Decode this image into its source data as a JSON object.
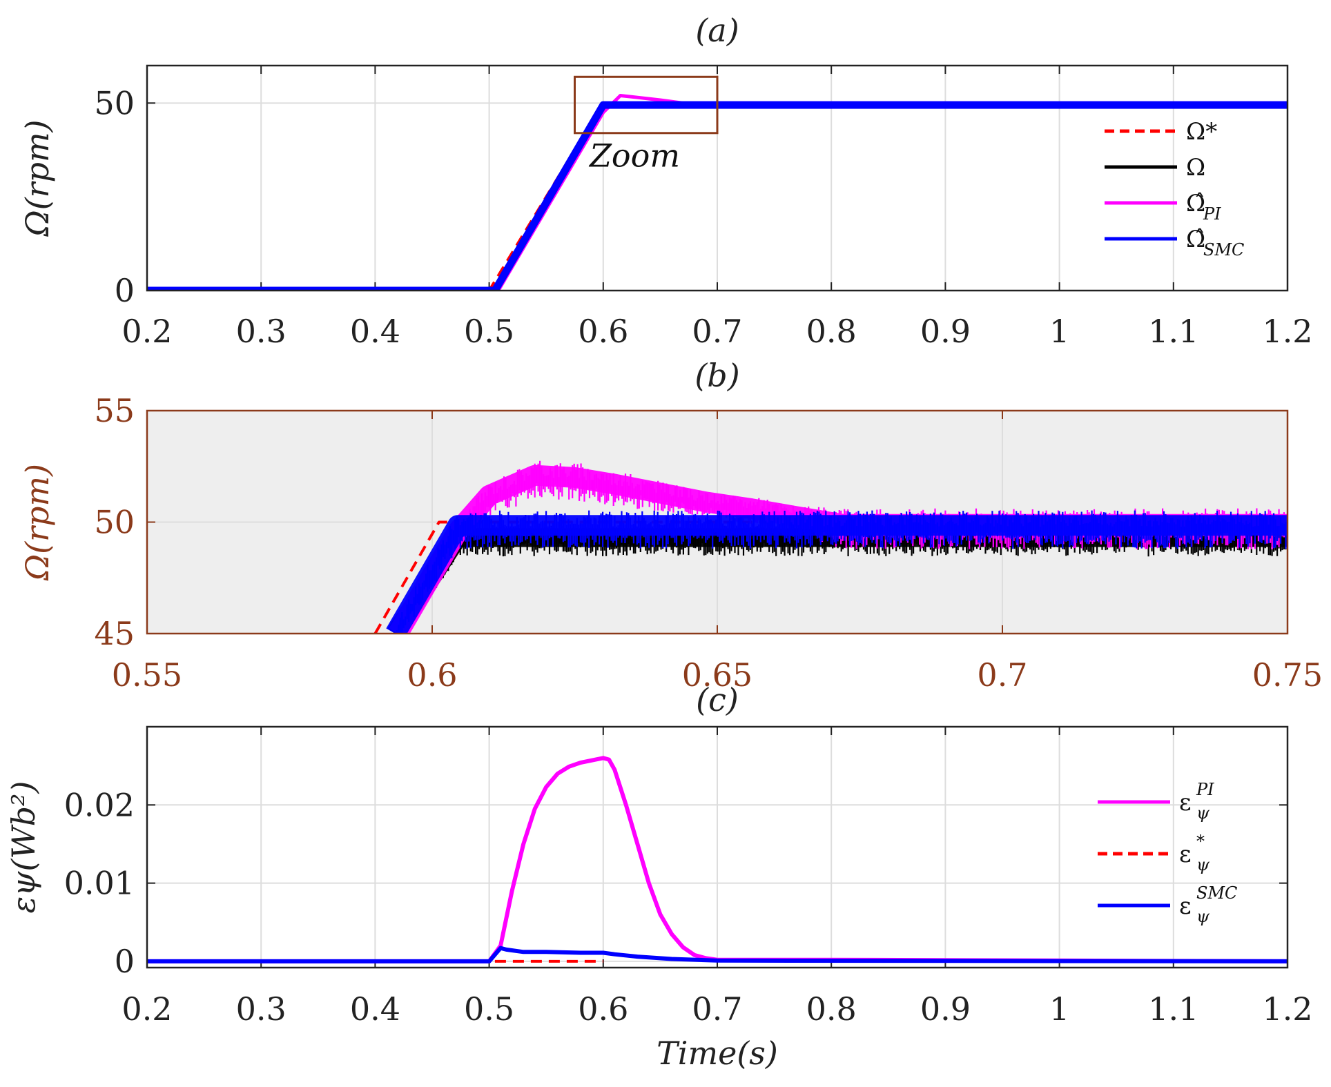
{
  "colors": {
    "ref": "#ff0000",
    "actual": "#000000",
    "pi": "#ff00ff",
    "smc": "#0000ff",
    "zoom_box": "#8b3a1a",
    "brown_axis": "#8b3a1a",
    "zoom_bg": "#eeeeee",
    "grid": "#dddddd"
  },
  "chart_data": [
    {
      "type": "line",
      "title": "(a)",
      "ylabel": "Ω(rpm)",
      "xlabel": "",
      "xlim": [
        0.2,
        1.2
      ],
      "ylim": [
        0,
        60
      ],
      "xticks": [
        0.2,
        0.3,
        0.4,
        0.5,
        0.6,
        0.7,
        0.8,
        0.9,
        1,
        1.1,
        1.2
      ],
      "xtick_labels": [
        "0.2",
        "0.3",
        "0.4",
        "0.5",
        "0.6",
        "0.7",
        "0.8",
        "0.9",
        "1",
        "1.1",
        "1.2"
      ],
      "yticks": [
        0,
        50
      ],
      "ytick_labels": [
        "0",
        "50"
      ],
      "annotation": "Zoom",
      "zoom_box": {
        "x": [
          0.575,
          0.7
        ],
        "y": [
          42,
          57
        ]
      },
      "legend": {
        "position": "right",
        "entries": [
          {
            "label": "Ω*",
            "sub": "",
            "style": "dashed",
            "color_key": "ref"
          },
          {
            "label": "Ω",
            "sub": "",
            "style": "solid",
            "color_key": "actual"
          },
          {
            "label": "Ω̂",
            "sub": "PI",
            "style": "solid",
            "color_key": "pi"
          },
          {
            "label": "Ω̂",
            "sub": "SMC",
            "style": "solid",
            "color_key": "smc"
          }
        ]
      },
      "series": [
        {
          "name": "Ω*",
          "style": "dashed",
          "color_key": "ref",
          "x": [
            0.2,
            0.5,
            0.6,
            1.2
          ],
          "y": [
            0,
            0,
            50,
            50
          ]
        },
        {
          "name": "Ω",
          "style": "solid",
          "color_key": "actual",
          "x": [
            0.2,
            0.505,
            0.6,
            1.2
          ],
          "y": [
            0,
            0,
            49.5,
            49.5
          ]
        },
        {
          "name": "Ω̂PI",
          "style": "solid",
          "color_key": "pi",
          "x": [
            0.2,
            0.508,
            0.6,
            0.615,
            0.63,
            0.65,
            0.67,
            1.2
          ],
          "y": [
            0,
            0,
            47.5,
            52,
            51.5,
            50.8,
            50,
            50
          ]
        },
        {
          "name": "Ω̂SMC",
          "style": "solid",
          "color_key": "smc",
          "x": [
            0.2,
            0.505,
            0.6,
            1.2
          ],
          "y": [
            0,
            0,
            49.5,
            49.5
          ]
        }
      ]
    },
    {
      "type": "line",
      "title": "(b)",
      "ylabel": "Ω(rpm)",
      "xlabel": "",
      "xlim": [
        0.55,
        0.75
      ],
      "ylim": [
        45,
        55
      ],
      "xticks": [
        0.55,
        0.6,
        0.65,
        0.7,
        0.75
      ],
      "xtick_labels": [
        "0.55",
        "0.6",
        "0.65",
        "0.7",
        "0.75"
      ],
      "yticks": [
        45,
        50,
        55
      ],
      "ytick_labels": [
        "45",
        "50",
        "55"
      ],
      "series": [
        {
          "name": "Ω*",
          "style": "dashed",
          "color_key": "ref",
          "x": [
            0.59,
            0.6012,
            0.75
          ],
          "y": [
            45,
            50,
            50
          ]
        },
        {
          "name": "Ω",
          "style": "band",
          "color_key": "actual",
          "x": [
            0.5935,
            0.6045,
            0.75
          ],
          "y": [
            45,
            49.3,
            49.3
          ],
          "band": [
            0.6,
            0.6,
            0.6
          ]
        },
        {
          "name": "Ω̂PI",
          "style": "band",
          "color_key": "pi",
          "x": [
            0.594,
            0.6045,
            0.61,
            0.618,
            0.625,
            0.632,
            0.64,
            0.648,
            0.656,
            0.665,
            0.672,
            0.75
          ],
          "y": [
            45,
            49.6,
            51.2,
            52.1,
            52.0,
            51.7,
            51.3,
            50.9,
            50.6,
            50.2,
            49.9,
            49.9
          ],
          "band": [
            0.5,
            0.5,
            0.7,
            0.8,
            0.8,
            0.7,
            0.6,
            0.5,
            0.6,
            0.6,
            0.8,
            0.8
          ]
        },
        {
          "name": "Ω̂SMC",
          "style": "band",
          "color_key": "smc",
          "x": [
            0.5935,
            0.6045,
            0.75
          ],
          "y": [
            45,
            49.85,
            49.85
          ],
          "band": [
            0.5,
            0.75,
            0.75
          ]
        }
      ]
    },
    {
      "type": "line",
      "title": "(c)",
      "ylabel": "εψ(Wb²)",
      "xlabel": "Time(s)",
      "xlim": [
        0.2,
        1.2
      ],
      "ylim": [
        -0.0008,
        0.03
      ],
      "xticks": [
        0.2,
        0.3,
        0.4,
        0.5,
        0.6,
        0.7,
        0.8,
        0.9,
        1,
        1.1,
        1.2
      ],
      "xtick_labels": [
        "0.2",
        "0.3",
        "0.4",
        "0.5",
        "0.6",
        "0.7",
        "0.8",
        "0.9",
        "1",
        "1.1",
        "1.2"
      ],
      "yticks": [
        0,
        0.01,
        0.02
      ],
      "ytick_labels": [
        "0",
        "0.01",
        "0.02"
      ],
      "legend": {
        "position": "right",
        "entries": [
          {
            "label": "ε",
            "sub": "ψ",
            "sup": "PI",
            "style": "solid",
            "color_key": "pi"
          },
          {
            "label": "ε",
            "sub": "ψ",
            "sup": "*",
            "style": "dashed",
            "color_key": "ref"
          },
          {
            "label": "ε",
            "sub": "ψ",
            "sup": "SMC",
            "style": "solid",
            "color_key": "smc"
          }
        ]
      },
      "series": [
        {
          "name": "εψPI",
          "style": "solid",
          "color_key": "pi",
          "x": [
            0.2,
            0.5,
            0.51,
            0.52,
            0.53,
            0.54,
            0.55,
            0.56,
            0.57,
            0.58,
            0.59,
            0.6,
            0.605,
            0.61,
            0.62,
            0.63,
            0.64,
            0.65,
            0.66,
            0.67,
            0.68,
            0.69,
            0.7,
            0.8,
            1.2
          ],
          "y": [
            0,
            0,
            0.002,
            0.009,
            0.015,
            0.0195,
            0.0223,
            0.024,
            0.0249,
            0.0254,
            0.0257,
            0.026,
            0.0258,
            0.0245,
            0.02,
            0.015,
            0.01,
            0.006,
            0.0035,
            0.0018,
            0.0008,
            0.0004,
            0.0002,
            0.0002,
            0
          ]
        },
        {
          "name": "εψ*",
          "style": "dashed",
          "color_key": "ref",
          "x": [
            0.505,
            0.6
          ],
          "y": [
            0,
            0
          ]
        },
        {
          "name": "εψSMC",
          "style": "solid",
          "color_key": "smc",
          "x": [
            0.2,
            0.5,
            0.51,
            0.515,
            0.53,
            0.55,
            0.58,
            0.6,
            0.61,
            0.63,
            0.66,
            0.7,
            1.2
          ],
          "y": [
            0,
            0,
            0.0017,
            0.0015,
            0.0012,
            0.0012,
            0.0011,
            0.0011,
            0.0009,
            0.0006,
            0.0003,
            0.0001,
            0
          ]
        }
      ]
    }
  ]
}
